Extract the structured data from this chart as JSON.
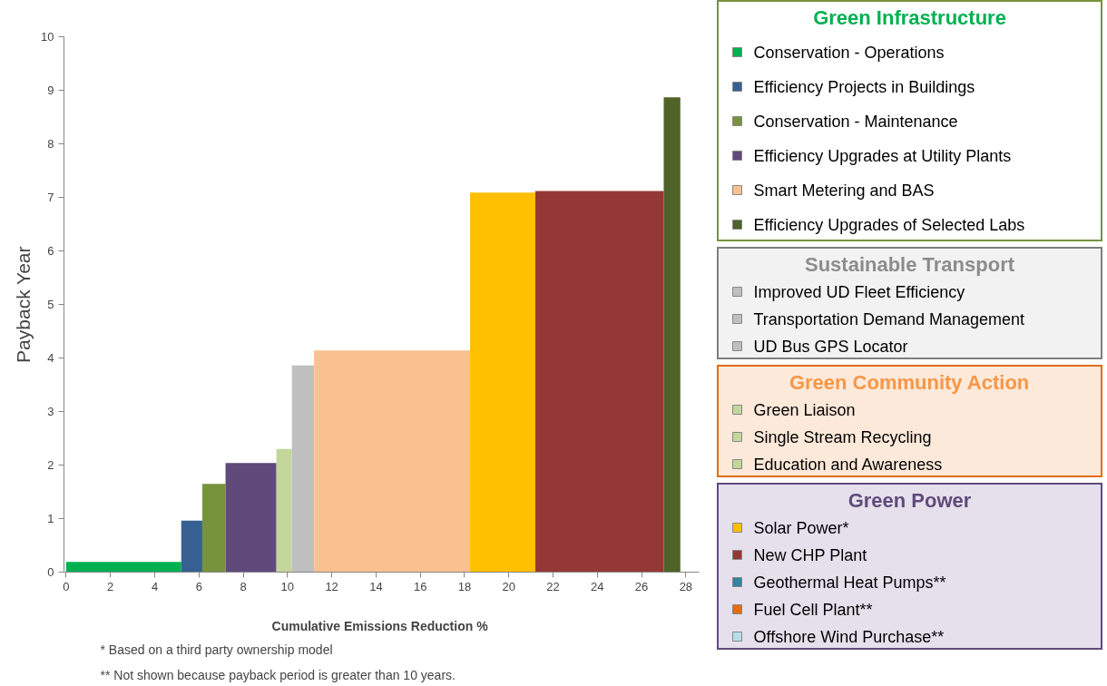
{
  "chart_data": [
    {
      "type": "histogram",
      "xlabel": "Cumulative  Emissions Reduction %",
      "ylabel": "Payback Year",
      "bins": [
        0,
        5.2,
        6.15,
        7.2,
        9.5,
        10.2,
        11.2,
        18.25,
        21.2,
        27.0,
        27.75
      ],
      "values": [
        0.19,
        0.96,
        1.65,
        2.04,
        2.3,
        3.86,
        4.14,
        7.09,
        7.12,
        8.87
      ],
      "colors": [
        "#00b050",
        "#376092",
        "#77933c",
        "#604a7b",
        "#c3d69b",
        "#bfbfbf",
        "#fac090",
        "#ffc000",
        "#953735",
        "#4f6228"
      ],
      "xlim": [
        -0.1,
        28.6
      ],
      "ylim": [
        0,
        10
      ],
      "xticks": [
        0,
        2,
        4,
        6,
        8,
        10,
        12,
        14,
        16,
        18,
        20,
        22,
        24,
        26,
        28
      ],
      "yticks": [
        0,
        1,
        2,
        3,
        4,
        5,
        6,
        7,
        8,
        9,
        10
      ],
      "grid": false,
      "annotations": [
        "*  Based on a third party ownership model",
        "** Not shown because payback period is greater than 10 years."
      ]
    },
    {
      "type": "other",
      "title": "Green Infrastructure",
      "series": [
        {
          "name": "Conservation - Operations",
          "color": "#00b050"
        },
        {
          "name": "Efficiency Projects in Buildings",
          "color": "#376092"
        },
        {
          "name": "Conservation - Maintenance",
          "color": "#77933c"
        },
        {
          "name": "Efficiency Upgrades at Utility Plants",
          "color": "#604a7b"
        },
        {
          "name": "Smart Metering and BAS",
          "color": "#fac090"
        },
        {
          "name": "Efficiency  Upgrades of Selected Labs",
          "color": "#4f6228"
        }
      ]
    },
    {
      "type": "other",
      "title": "Sustainable Transport",
      "series": [
        {
          "name": "Improved UD Fleet Efficiency",
          "color": "#bfbfbf"
        },
        {
          "name": "Transportation Demand Management",
          "color": "#bfbfbf"
        },
        {
          "name": "UD Bus GPS Locator",
          "color": "#bfbfbf"
        }
      ]
    },
    {
      "type": "other",
      "title": "Green Community Action",
      "series": [
        {
          "name": "Green Liaison",
          "color": "#c3d69b"
        },
        {
          "name": "Single Stream Recycling",
          "color": "#c3d69b"
        },
        {
          "name": "Education and Awareness",
          "color": "#c3d69b"
        }
      ]
    },
    {
      "type": "other",
      "title": "Green Power",
      "series": [
        {
          "name": "Solar Power*",
          "color": "#ffc000"
        },
        {
          "name": "New CHP Plant",
          "color": "#953735"
        },
        {
          "name": "Geothermal Heat Pumps**",
          "color": "#31859c"
        },
        {
          "name": "Fuel Cell Plant**",
          "color": "#e46c0a"
        },
        {
          "name": "Offshore Wind Purchase**",
          "color": "#b7dee8"
        }
      ]
    }
  ]
}
